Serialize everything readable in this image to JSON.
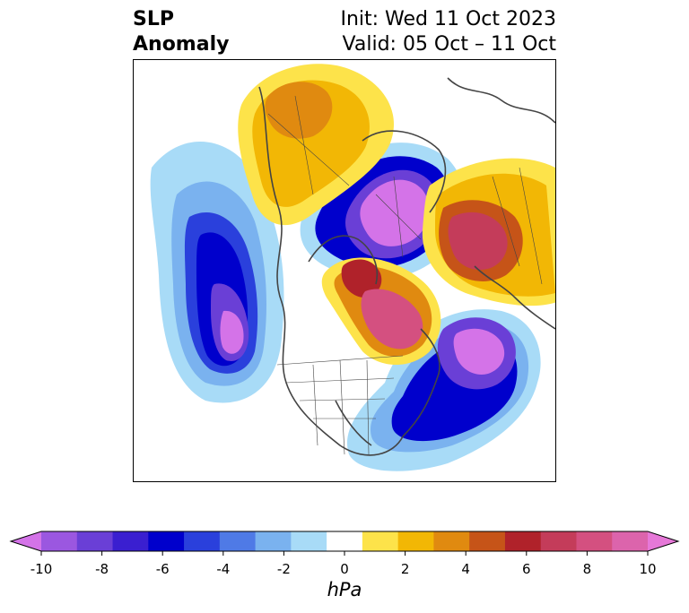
{
  "header": {
    "title_line1": "SLP",
    "title_line2": "Anomaly",
    "init_text": "Init: Wed 11 Oct 2023",
    "valid_text": "Valid: 05 Oct – 11 Oct"
  },
  "colorbar": {
    "unit": "hPa",
    "tick_labels": [
      "-10",
      "-8",
      "-6",
      "-4",
      "-2",
      "0",
      "2",
      "4",
      "6",
      "8",
      "10"
    ],
    "colors": [
      "#d473e8",
      "#9b57e0",
      "#6a3fd6",
      "#3a1fd0",
      "#0000cc",
      "#2a40dc",
      "#4f7ae6",
      "#7ab2ef",
      "#a8dbf7",
      "#ffffff",
      "#fde34a",
      "#f2b705",
      "#e08a10",
      "#c65418",
      "#b0222a",
      "#c43c5a",
      "#d45080",
      "#dc64ac",
      "#e678d8"
    ],
    "extend": "both"
  },
  "map": {
    "projection": "polar stereographic (North America centred)",
    "field": "sea level pressure anomaly",
    "features": [
      "coastlines",
      "country borders",
      "US state borders",
      "Canadian provinces"
    ]
  }
}
